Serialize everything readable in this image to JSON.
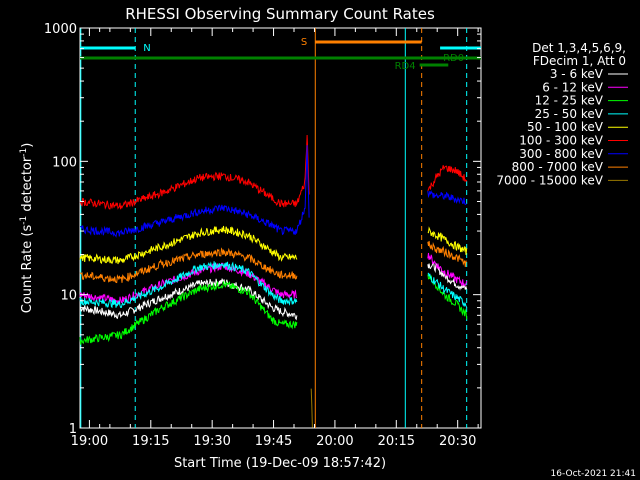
{
  "chart_data": {
    "type": "line",
    "title": "RHESSI Observing Summary Count Rates",
    "xlabel": "Start Time (19-Dec-09 18:57:42)",
    "ylabel_main": "Count Rate (s",
    "ylabel_sup1": "-1",
    "ylabel_mid": " detector",
    "ylabel_sup2": "-1",
    "ylabel_end": ")",
    "yscale": "log",
    "ylim": [
      1,
      1000
    ],
    "xlim_minutes": [
      0,
      98
    ],
    "x_ticks": [
      {
        "t": 2.3,
        "label": "19:00"
      },
      {
        "t": 17.3,
        "label": "19:15"
      },
      {
        "t": 32.3,
        "label": "19:30"
      },
      {
        "t": 47.3,
        "label": "19:45"
      },
      {
        "t": 62.3,
        "label": "20:00"
      },
      {
        "t": 77.3,
        "label": "20:15"
      },
      {
        "t": 92.3,
        "label": "20:30"
      }
    ],
    "y_ticks": [
      {
        "v": 1,
        "label": "1"
      },
      {
        "v": 10,
        "label": "10"
      },
      {
        "v": 100,
        "label": "100"
      },
      {
        "v": 1000,
        "label": "1000"
      }
    ],
    "legend_header": [
      "Det 1,3,4,5,6,9,",
      "FDecim 1, Att 0"
    ],
    "series": [
      {
        "name": "3 - 6 keV",
        "color": "#ffffff",
        "segments": [
          [
            [
              0,
              8
            ],
            [
              10,
              7
            ],
            [
              20,
              9.5
            ],
            [
              29,
              12
            ],
            [
              35,
              12.5
            ],
            [
              41,
              11
            ],
            [
              47,
              8
            ],
            [
              49,
              7.5
            ],
            [
              53,
              7
            ]
          ],
          [
            [
              85,
              17
            ],
            [
              87,
              16
            ],
            [
              89,
              14
            ],
            [
              92,
              12
            ],
            [
              94.5,
              11
            ]
          ]
        ]
      },
      {
        "name": "6 - 12 keV",
        "color": "#ff00ff",
        "segments": [
          [
            [
              0,
              10
            ],
            [
              10,
              9
            ],
            [
              20,
              12
            ],
            [
              29,
              15
            ],
            [
              35,
              16.5
            ],
            [
              41,
              14.5
            ],
            [
              47,
              11
            ],
            [
              49,
              10
            ],
            [
              53,
              10
            ]
          ],
          [
            [
              85,
              20
            ],
            [
              87,
              17
            ],
            [
              89,
              15
            ],
            [
              92,
              13
            ],
            [
              94.5,
              12
            ]
          ]
        ]
      },
      {
        "name": "12 - 25 keV",
        "color": "#00ff00",
        "segments": [
          [
            [
              0,
              4.5
            ],
            [
              10,
              5
            ],
            [
              20,
              8
            ],
            [
              29,
              11
            ],
            [
              35,
              12
            ],
            [
              41,
              10.5
            ],
            [
              47,
              6.5
            ],
            [
              49,
              6
            ],
            [
              53,
              6
            ]
          ],
          [
            [
              85,
              14
            ],
            [
              87,
              12
            ],
            [
              89,
              10
            ],
            [
              92,
              8.5
            ],
            [
              94.5,
              7
            ]
          ]
        ]
      },
      {
        "name": "25 - 50 keV",
        "color": "#00ffff",
        "segments": [
          [
            [
              0,
              9
            ],
            [
              10,
              8.5
            ],
            [
              20,
              11.5
            ],
            [
              29,
              16
            ],
            [
              35,
              17
            ],
            [
              41,
              15
            ],
            [
              47,
              10
            ],
            [
              49,
              9
            ],
            [
              53,
              9
            ]
          ],
          [
            [
              85,
              14
            ],
            [
              87,
              12.5
            ],
            [
              89,
              11
            ],
            [
              92,
              9.5
            ],
            [
              94.5,
              8.5
            ]
          ]
        ]
      },
      {
        "name": "50 - 100 keV",
        "color": "#ffff00",
        "segments": [
          [
            [
              0,
              19
            ],
            [
              10,
              18
            ],
            [
              20,
              23
            ],
            [
              29,
              29
            ],
            [
              35,
              31
            ],
            [
              41,
              28
            ],
            [
              47,
              21
            ],
            [
              49,
              19
            ],
            [
              53,
              19
            ]
          ],
          [
            [
              85,
              30
            ],
            [
              87,
              28
            ],
            [
              89,
              26
            ],
            [
              92,
              23
            ],
            [
              94.5,
              21
            ]
          ]
        ]
      },
      {
        "name": "100 - 300 keV",
        "color": "#ff0000",
        "segments": [
          [
            [
              0,
              50
            ],
            [
              10,
              46
            ],
            [
              20,
              58
            ],
            [
              29,
              75
            ],
            [
              35,
              78
            ],
            [
              41,
              70
            ],
            [
              47,
              53
            ],
            [
              49,
              48
            ],
            [
              53,
              48
            ],
            [
              55,
              70
            ],
            [
              55.5,
              160
            ],
            [
              56,
              60
            ]
          ],
          [
            [
              85,
              60
            ],
            [
              87,
              75
            ],
            [
              89,
              90
            ],
            [
              92,
              85
            ],
            [
              94.5,
              72
            ]
          ]
        ]
      },
      {
        "name": "300 - 800 keV",
        "color": "#0000ff",
        "segments": [
          [
            [
              0,
              31
            ],
            [
              10,
              29
            ],
            [
              20,
              35
            ],
            [
              29,
              42
            ],
            [
              35,
              45
            ],
            [
              41,
              40
            ],
            [
              47,
              33
            ],
            [
              49,
              30
            ],
            [
              53,
              30
            ],
            [
              55,
              45
            ],
            [
              55.5,
              130
            ],
            [
              56,
              40
            ]
          ],
          [
            [
              85,
              58
            ],
            [
              87,
              55
            ],
            [
              89,
              55
            ],
            [
              92,
              52
            ],
            [
              94.5,
              50
            ]
          ]
        ]
      },
      {
        "name": "800 - 7000 keV",
        "color": "#ff8000",
        "segments": [
          [
            [
              0,
              14
            ],
            [
              10,
              13
            ],
            [
              20,
              17
            ],
            [
              29,
              20
            ],
            [
              35,
              21
            ],
            [
              41,
              19
            ],
            [
              47,
              15
            ],
            [
              49,
              14
            ],
            [
              53,
              14
            ]
          ],
          [
            [
              85,
              24
            ],
            [
              87,
              22
            ],
            [
              89,
              21
            ],
            [
              92,
              19
            ],
            [
              94.5,
              17
            ]
          ]
        ]
      },
      {
        "name": "7000 - 15000 keV",
        "color": "#9a7a00",
        "segments": [
          [
            [
              56.5,
              2
            ],
            [
              56.8,
              1
            ]
          ]
        ]
      }
    ],
    "bars": [
      {
        "label": "N",
        "color": "#00ffff",
        "segments": [
          [
            0,
            13.5
          ],
          [
            88,
            98
          ]
        ]
      },
      {
        "label": "S",
        "color": "#ff8000",
        "segments": [
          [
            57.5,
            83.5
          ]
        ]
      },
      {
        "label": "RD0",
        "color": "#008000",
        "segments": [
          [
            0,
            98
          ]
        ]
      },
      {
        "label": "RD4",
        "color": "#008000",
        "segments": [
          [
            83,
            90
          ]
        ]
      }
    ],
    "vlines": [
      {
        "t": 0.2,
        "color": "#00ffff",
        "dashed": false
      },
      {
        "t": 13.5,
        "color": "#00ffff",
        "dashed": true
      },
      {
        "t": 57.5,
        "color": "#ff8000",
        "dashed": false
      },
      {
        "t": 79.5,
        "color": "#00ffff",
        "dashed": false
      },
      {
        "t": 83.5,
        "color": "#ff8000",
        "dashed": true
      },
      {
        "t": 94.5,
        "color": "#00ffff",
        "dashed": true
      }
    ],
    "grid": false,
    "legend_position": "right"
  },
  "footer_timestamp": "16-Oct-2021 21:41"
}
